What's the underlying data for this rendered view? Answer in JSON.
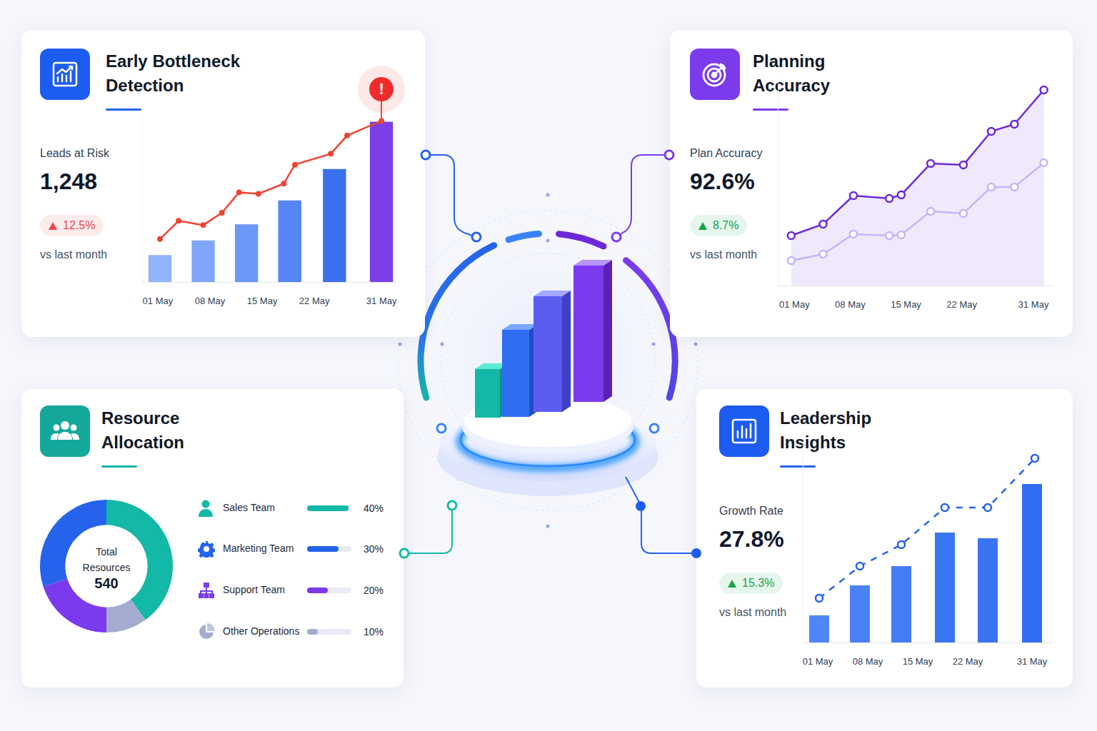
{
  "chart_data": [
    {
      "type": "bar",
      "title": "Early Bottleneck Detection",
      "kpi": {
        "label": "Leads at Risk",
        "value": "1,248",
        "change": "12.5%",
        "trend": "up",
        "color": "#ef4444",
        "note": "vs last month"
      },
      "annotations": [
        "!"
      ],
      "series": [
        {
          "type": "bar",
          "x": [
            1.3,
            7.1,
            12.9,
            18.7,
            24.7,
            31.0
          ],
          "values": [
            37,
            57,
            79,
            112,
            155,
            220
          ],
          "colors": [
            "#93b4fb",
            "#7fa6f9",
            "#6c97f7",
            "#5586f4",
            "#3b70ef",
            "#7b3fe4"
          ]
        },
        {
          "type": "line",
          "x": [
            1.3,
            3.8,
            7.1,
            9.6,
            11.9,
            14.5,
            17.9,
            19.4,
            24.2,
            26.4,
            31.0
          ],
          "values": [
            59,
            84,
            78,
            95,
            123,
            121,
            135,
            161,
            176,
            201,
            221
          ],
          "color": "#ef4433",
          "marker": "circle"
        }
      ],
      "xlim": [
        -1,
        33
      ],
      "xticks": [
        {
          "value": 1,
          "label": "01 May"
        },
        {
          "value": 8,
          "label": "08 May"
        },
        {
          "value": 15,
          "label": "15 May"
        },
        {
          "value": 22,
          "label": "22 May"
        },
        {
          "value": 31,
          "label": "31 May"
        }
      ],
      "ylim": [
        0,
        240
      ],
      "tick_labels": "x",
      "grid": false
    },
    {
      "type": "line",
      "title": "Planning Accuracy",
      "kpi": {
        "label": "Plan Accuracy",
        "value": "92.6%",
        "change": "8.7%",
        "trend": "up",
        "color": "#16a34a",
        "note": "vs last month"
      },
      "series": [
        {
          "type": "area",
          "x": [
            0.6,
            4.6,
            8.4,
            12.9,
            14.4,
            18.1,
            22.2,
            25.7,
            28.6,
            32.3
          ],
          "values": [
            70,
            86,
            126,
            122,
            127,
            171,
            169,
            216,
            226,
            274
          ],
          "color": "#6d28d9",
          "marker": "circle-open"
        },
        {
          "type": "line",
          "x": [
            0.6,
            4.6,
            8.4,
            12.9,
            14.4,
            18.1,
            22.2,
            25.7,
            28.6,
            32.3
          ],
          "values": [
            35,
            44,
            72,
            70,
            71,
            104,
            101,
            138,
            138,
            172
          ],
          "color": "#c4b5fd",
          "marker": "circle-open"
        }
      ],
      "xlim": [
        -1,
        33.5
      ],
      "xticks": [
        {
          "value": 1,
          "label": "01 May"
        },
        {
          "value": 8,
          "label": "08 May"
        },
        {
          "value": 15,
          "label": "15 May"
        },
        {
          "value": 22,
          "label": "22 May"
        },
        {
          "value": 31,
          "label": "31 May"
        }
      ],
      "ylim": [
        0,
        290
      ],
      "tick_labels": "x",
      "grid": false
    },
    {
      "type": "pie",
      "title": "Resource Allocation",
      "center_label": "Total Resources",
      "center_value": "540",
      "categories": [
        "Sales Team",
        "Marketing Team",
        "Support Team",
        "Other Operations"
      ],
      "values": [
        40,
        30,
        20,
        10
      ],
      "value_labels": [
        "40%",
        "30%",
        "20%",
        "10%"
      ],
      "colors": [
        "#14b8a6",
        "#2563eb",
        "#7c3aed",
        "#a5acd0"
      ]
    },
    {
      "type": "bar",
      "title": "Leadership Insights",
      "kpi": {
        "label": "Growth Rate",
        "value": "27.8%",
        "change": "15.3%",
        "trend": "up",
        "color": "#16a34a",
        "note": "vs last month"
      },
      "series": [
        {
          "type": "bar",
          "x": [
            1.2,
            6.9,
            12.7,
            18.8,
            24.8,
            31.0
          ],
          "values": [
            38,
            80,
            107,
            154,
            146,
            222
          ],
          "colors": [
            "#4f86f5",
            "#4a82f5",
            "#447df4",
            "#3c77f3",
            "#3a74f3",
            "#2f6df2"
          ]
        },
        {
          "type": "line",
          "x": [
            1.2,
            6.9,
            12.7,
            18.8,
            24.8,
            31.4
          ],
          "values": [
            62,
            107,
            137,
            189,
            189,
            258
          ],
          "color": "#2563eb",
          "marker": "circle-open",
          "line_style": "dash"
        }
      ],
      "xlim": [
        -1,
        34
      ],
      "xticks": [
        {
          "value": 1,
          "label": "01 May"
        },
        {
          "value": 8,
          "label": "08 May"
        },
        {
          "value": 15,
          "label": "15 May"
        },
        {
          "value": 22,
          "label": "22 May"
        },
        {
          "value": 31,
          "label": "31 May"
        }
      ],
      "ylim": [
        0,
        280
      ],
      "tick_labels": "x",
      "grid": false
    }
  ]
}
